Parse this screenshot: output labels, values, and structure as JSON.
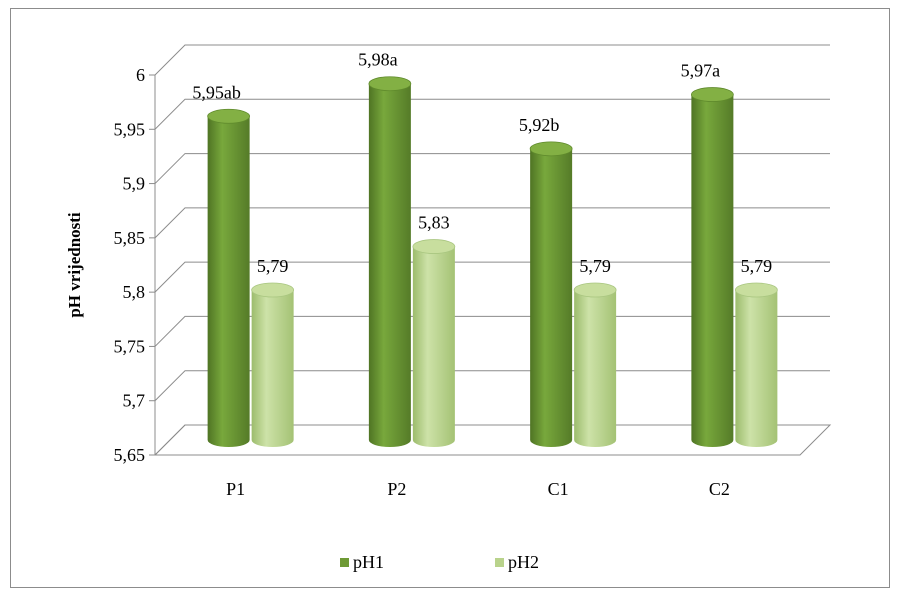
{
  "chart_data": {
    "type": "bar",
    "title": "",
    "xlabel": "",
    "ylabel": "pH vrijednosti",
    "categories": [
      "P1",
      "P2",
      "C1",
      "C2"
    ],
    "series": [
      {
        "name": "pH1",
        "values": [
          5.95,
          5.98,
          5.92,
          5.97
        ],
        "labels": [
          "5,95ab",
          "5,98a",
          "5,92b",
          "5,97a"
        ],
        "color": "#6e9a35"
      },
      {
        "name": "pH2",
        "values": [
          5.79,
          5.83,
          5.79,
          5.79
        ],
        "labels": [
          "5,79",
          "5,83",
          "5,79",
          "5,79"
        ],
        "color": "#b9d38c"
      }
    ],
    "ylim": [
      5.65,
      6
    ],
    "yticks": [
      "5,65",
      "5,7",
      "5,75",
      "5,8",
      "5,85",
      "5,9",
      "5,95",
      "6"
    ],
    "grid": true,
    "legend": "bottom"
  }
}
